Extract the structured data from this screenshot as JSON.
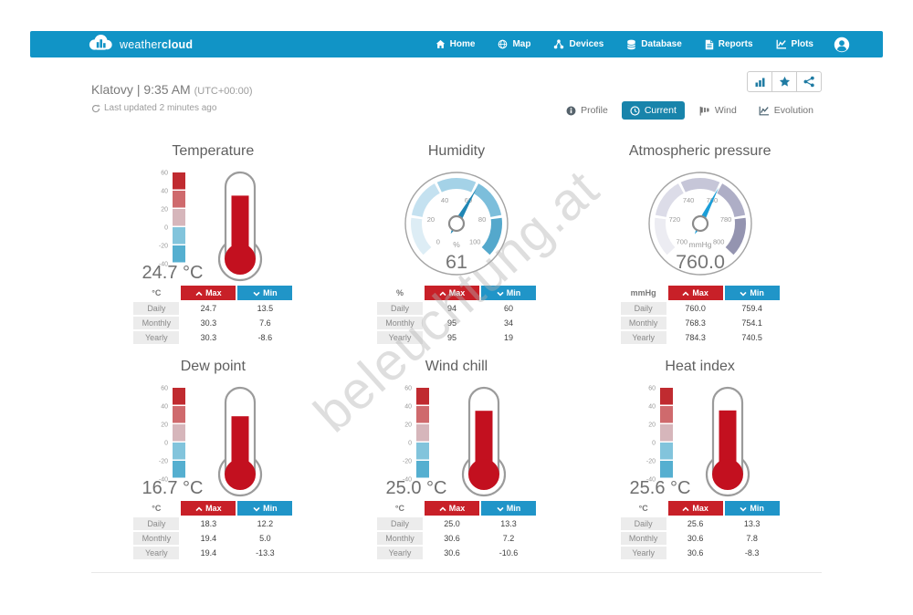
{
  "navbar": {
    "brand": {
      "weather": "weather",
      "cloud": "cloud"
    },
    "items": [
      {
        "label": "Home",
        "icon": "home-icon"
      },
      {
        "label": "Map",
        "icon": "map-icon"
      },
      {
        "label": "Devices",
        "icon": "devices-icon"
      },
      {
        "label": "Database",
        "icon": "database-icon"
      },
      {
        "label": "Reports",
        "icon": "reports-icon"
      },
      {
        "label": "Plots",
        "icon": "plots-icon"
      }
    ]
  },
  "station": {
    "name": "Klatovy",
    "separator": "|",
    "time": "9:35 AM",
    "utc": "(UTC+00:00)",
    "last_updated": "Last updated 2 minutes ago"
  },
  "toolbar": {
    "buttons": [
      {
        "name": "stats",
        "icon": "bar-chart-icon"
      },
      {
        "name": "favorite",
        "icon": "star-icon"
      },
      {
        "name": "share",
        "icon": "share-icon"
      }
    ]
  },
  "tabs": [
    {
      "label": "Profile",
      "icon": "info-icon",
      "active": false
    },
    {
      "label": "Current",
      "icon": "clock-icon",
      "active": true
    },
    {
      "label": "Wind",
      "icon": "windsock-icon",
      "active": false
    },
    {
      "label": "Evolution",
      "icon": "evolution-chart-icon",
      "active": false
    }
  ],
  "table_headers": {
    "max": "Max",
    "min": "Min"
  },
  "watermark": "beleuchtung.at",
  "colors": {
    "navbar_blue": "#1194c6",
    "active_tab_blue": "#1884ab",
    "icon_blue": "#1f7ba3",
    "max_red": "#c82028",
    "min_blue": "#2095c8",
    "thermometer_red": "#c3101f"
  },
  "chart_data": [
    {
      "type": "thermometer",
      "title": "Temperature",
      "unit": "°C",
      "value": 24.7,
      "value_display": "24.7 °C",
      "scale": {
        "min": -40,
        "max": 60,
        "ticks": [
          60,
          40,
          20,
          0,
          -20,
          -40
        ],
        "colors": [
          "#c02b30",
          "#cf6a6d",
          "#d6b6bb",
          "#82c4dc",
          "#55afd0"
        ]
      },
      "fill_color": "#c3101f",
      "rows": [
        [
          "Daily",
          "24.7",
          "13.5"
        ],
        [
          "Monthly",
          "30.3",
          "7.6"
        ],
        [
          "Yearly",
          "30.3",
          "-8.6"
        ]
      ]
    },
    {
      "type": "gauge",
      "title": "Humidity",
      "unit": "%",
      "value": 61,
      "value_display": "61",
      "scale": {
        "min": 0,
        "max": 100,
        "ticks": [
          0,
          20,
          40,
          60,
          80,
          100
        ],
        "colors": [
          "#ddedf5",
          "#c4e1f0",
          "#a4d2e7",
          "#7cbedb",
          "#54a8cc"
        ]
      },
      "needle_color": "#1f86b4",
      "rows": [
        [
          "Daily",
          "94",
          "60"
        ],
        [
          "Monthly",
          "95",
          "34"
        ],
        [
          "Yearly",
          "95",
          "19"
        ]
      ]
    },
    {
      "type": "gauge",
      "title": "Atmospheric pressure",
      "unit": "mmHg",
      "value": 760.0,
      "value_display": "760.0",
      "scale": {
        "min": 700,
        "max": 800,
        "ticks": [
          700,
          720,
          740,
          760,
          780,
          800
        ],
        "colors": [
          "#ececf2",
          "#dcdce8",
          "#c6c6d8",
          "#aeaec6",
          "#9494b0"
        ]
      },
      "needle_color": "#1b9ed8",
      "rows": [
        [
          "Daily",
          "760.0",
          "759.4"
        ],
        [
          "Monthly",
          "768.3",
          "754.1"
        ],
        [
          "Yearly",
          "784.3",
          "740.5"
        ]
      ]
    },
    {
      "type": "thermometer",
      "title": "Dew point",
      "unit": "°C",
      "value": 16.7,
      "value_display": "16.7 °C",
      "scale": {
        "min": -40,
        "max": 60,
        "ticks": [
          60,
          40,
          20,
          0,
          -20,
          -40
        ],
        "colors": [
          "#c02b30",
          "#cf6a6d",
          "#d6b6bb",
          "#82c4dc",
          "#55afd0"
        ]
      },
      "fill_color": "#c3101f",
      "rows": [
        [
          "Daily",
          "18.3",
          "12.2"
        ],
        [
          "Monthly",
          "19.4",
          "5.0"
        ],
        [
          "Yearly",
          "19.4",
          "-13.3"
        ]
      ]
    },
    {
      "type": "thermometer",
      "title": "Wind chill",
      "unit": "°C",
      "value": 25.0,
      "value_display": "25.0 °C",
      "scale": {
        "min": -40,
        "max": 60,
        "ticks": [
          60,
          40,
          20,
          0,
          -20,
          -40
        ],
        "colors": [
          "#c02b30",
          "#cf6a6d",
          "#d6b6bb",
          "#82c4dc",
          "#55afd0"
        ]
      },
      "fill_color": "#c3101f",
      "rows": [
        [
          "Daily",
          "25.0",
          "13.3"
        ],
        [
          "Monthly",
          "30.6",
          "7.2"
        ],
        [
          "Yearly",
          "30.6",
          "-10.6"
        ]
      ]
    },
    {
      "type": "thermometer",
      "title": "Heat index",
      "unit": "°C",
      "value": 25.6,
      "value_display": "25.6 °C",
      "scale": {
        "min": -40,
        "max": 60,
        "ticks": [
          60,
          40,
          20,
          0,
          -20,
          -40
        ],
        "colors": [
          "#c02b30",
          "#cf6a6d",
          "#d6b6bb",
          "#82c4dc",
          "#55afd0"
        ]
      },
      "fill_color": "#c3101f",
      "rows": [
        [
          "Daily",
          "25.6",
          "13.3"
        ],
        [
          "Monthly",
          "30.6",
          "7.8"
        ],
        [
          "Yearly",
          "30.6",
          "-8.3"
        ]
      ]
    }
  ]
}
